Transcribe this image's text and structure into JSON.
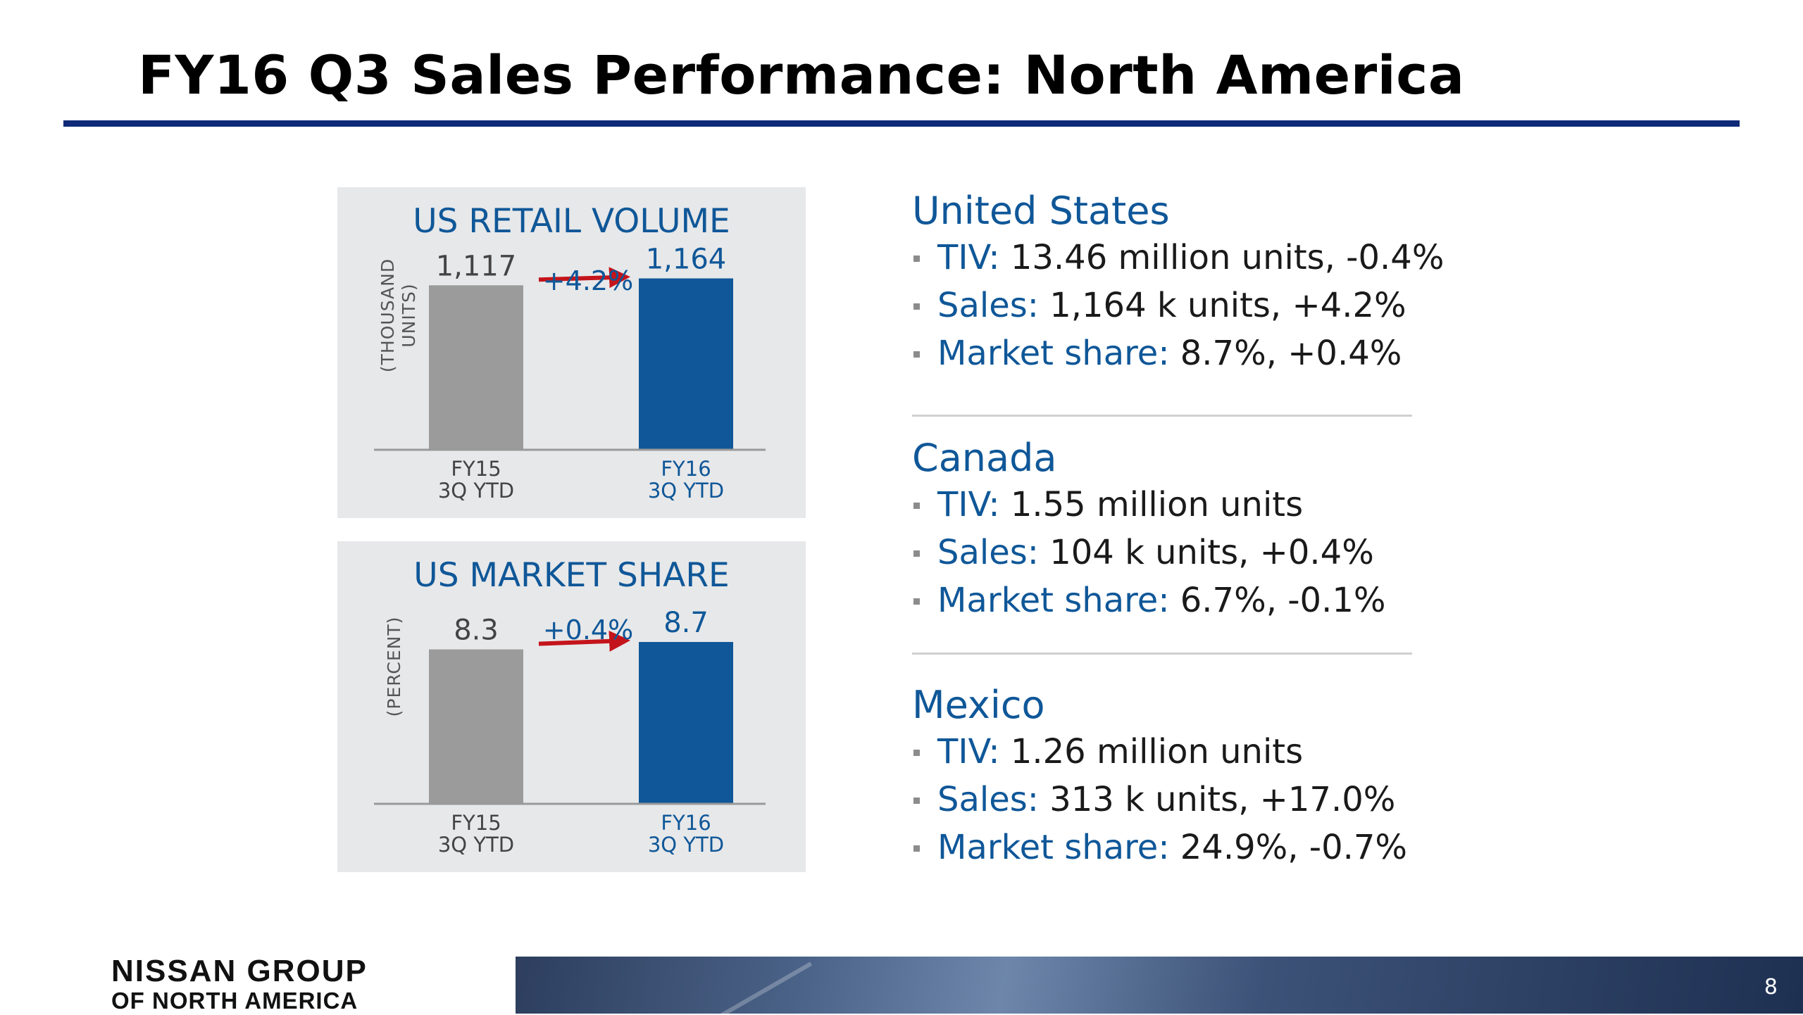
{
  "slide": {
    "title": "FY16 Q3 Sales Performance: North America",
    "page_number": "8",
    "logo_line1": "NISSAN GROUP",
    "logo_line2": "OF NORTH AMERICA"
  },
  "chart_data": [
    {
      "type": "bar",
      "title": "US RETAIL VOLUME",
      "ylabel_lines": [
        "(THOUSAND",
        "UNITS)"
      ],
      "categories": [
        [
          "FY15",
          "3Q YTD"
        ],
        [
          "FY16",
          "3Q YTD"
        ]
      ],
      "values": [
        1117,
        1164
      ],
      "value_labels": [
        "1,117",
        "1,164"
      ],
      "change_label": "+4.2%",
      "ylim": [
        0,
        1200
      ],
      "colors": [
        "#9b9b9b",
        "#0f5798"
      ],
      "label_colors": [
        "#444444",
        "#0f5798"
      ],
      "arrow_color": "#c4141b"
    },
    {
      "type": "bar",
      "title": "US MARKET SHARE",
      "ylabel_lines": [
        "(PERCENT)"
      ],
      "categories": [
        [
          "FY15",
          "3Q YTD"
        ],
        [
          "FY16",
          "3Q YTD"
        ]
      ],
      "values": [
        8.3,
        8.7
      ],
      "value_labels": [
        "8.3",
        "8.7"
      ],
      "change_label": "+0.4%",
      "ylim": [
        0,
        9.5
      ],
      "colors": [
        "#9b9b9b",
        "#0f5798"
      ],
      "label_colors": [
        "#444444",
        "#0f5798"
      ],
      "arrow_color": "#c4141b"
    }
  ],
  "regions": [
    {
      "name": "United States",
      "items": [
        {
          "label": "TIV:",
          "value": " 13.46 million units, -0.4%"
        },
        {
          "label": "Sales:",
          "value": " 1,164 k units, +4.2%"
        },
        {
          "label": "Market share:",
          "value": " 8.7%, +0.4%"
        }
      ]
    },
    {
      "name": "Canada",
      "items": [
        {
          "label": "TIV:",
          "value": " 1.55 million units"
        },
        {
          "label": "Sales:",
          "value": " 104 k units, +0.4%"
        },
        {
          "label": "Market share:",
          "value": " 6.7%, -0.1%"
        }
      ]
    },
    {
      "name": "Mexico",
      "items": [
        {
          "label": "TIV:",
          "value": " 1.26 million units"
        },
        {
          "label": "Sales:",
          "value": " 313 k units, +17.0%"
        },
        {
          "label": "Market share:",
          "value": " 24.9%, -0.7%"
        }
      ]
    }
  ],
  "colors": {
    "accent_blue": "#0f5798",
    "title_rule": "#0f2a78",
    "panel_bg": "#e7e8ea"
  }
}
